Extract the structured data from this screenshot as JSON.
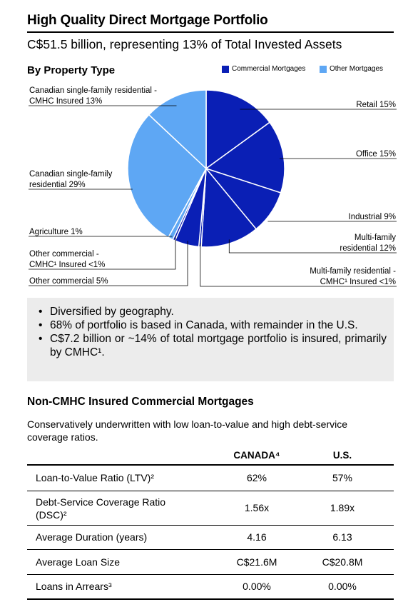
{
  "header": {
    "title": "High Quality Direct Mortgage Portfolio",
    "subtitle": "C$51.5 billion, representing 13% of Total Invested Assets",
    "section_title": "By Property Type"
  },
  "chart_data": {
    "type": "pie",
    "title": "By Property Type",
    "legend": [
      {
        "name": "Commercial Mortgages",
        "color": "#0a1fb5"
      },
      {
        "name": "Other Mortgages",
        "color": "#5ea7f4"
      }
    ],
    "legend_position": "top-right",
    "slices": [
      {
        "label": "Retail 15%",
        "value": 15,
        "group": "Commercial Mortgages",
        "color": "#0a1fb5"
      },
      {
        "label": "Office 15%",
        "value": 15,
        "group": "Commercial Mortgages",
        "color": "#0a1fb5"
      },
      {
        "label": "Industrial 9%",
        "value": 9,
        "group": "Commercial Mortgages",
        "color": "#0a1fb5"
      },
      {
        "label": "Multi-family residential 12%",
        "value": 12,
        "group": "Commercial Mortgages",
        "color": "#0a1fb5"
      },
      {
        "label": "Multi-family residential - CMHC Insured <1%",
        "value": 0.5,
        "group": "Commercial Mortgages",
        "color": "#0a1fb5"
      },
      {
        "label": "Other commercial 5%",
        "value": 5,
        "group": "Commercial Mortgages",
        "color": "#0a1fb5"
      },
      {
        "label": "Other commercial - CMHC1 Insured <1%",
        "value": 0.5,
        "group": "Commercial Mortgages",
        "color": "#0a1fb5"
      },
      {
        "label": "Agriculture 1%",
        "value": 1,
        "group": "Other Mortgages",
        "color": "#5ea7f4"
      },
      {
        "label": "Canadian single-family residential 29%",
        "value": 29,
        "group": "Other Mortgages",
        "color": "#5ea7f4"
      },
      {
        "label": "Canadian single-family residential - CMHC Insured 13%",
        "value": 13,
        "group": "Other Mortgages",
        "color": "#5ea7f4"
      }
    ]
  },
  "bullets": [
    "Diversified by geography.",
    "68% of portfolio is based in Canada, with remainder in the U.S.",
    "C$7.2 billion or ~14% of total mortgage portfolio is insured, primarily by CMHC¹."
  ],
  "commercial": {
    "title": "Non-CMHC Insured Commercial Mortgages",
    "description": "Conservatively underwritten with low loan-to-value and high debt-service coverage ratios.",
    "columns": [
      "CANADA⁴",
      "U.S."
    ],
    "rows": [
      {
        "label": "Loan-to-Value Ratio (LTV)²",
        "canada": "62%",
        "us": "57%"
      },
      {
        "label": "Debt-Service Coverage Ratio (DSC)²",
        "canada": "1.56x",
        "us": "1.89x"
      },
      {
        "label": "Average Duration (years)",
        "canada": "4.16",
        "us": "6.13"
      },
      {
        "label": "Average Loan Size",
        "canada": "C$21.6M",
        "us": "C$20.8M"
      },
      {
        "label": "Loans in Arrears³",
        "canada": "0.00%",
        "us": "0.00%"
      }
    ]
  }
}
